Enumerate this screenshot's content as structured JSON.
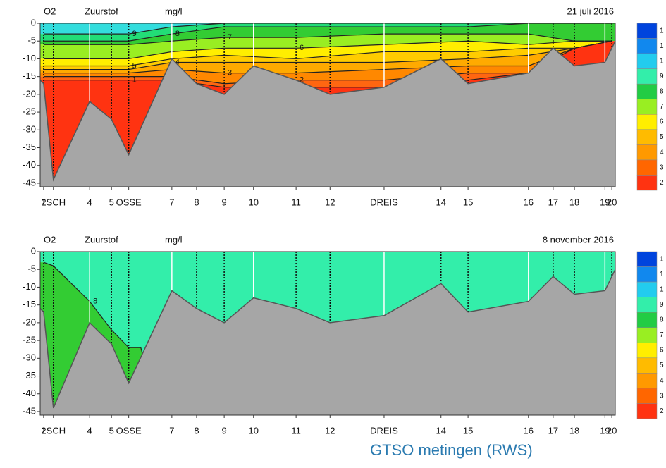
{
  "chart_data": [
    {
      "type": "contour",
      "title": "O2",
      "subtitle": "Zuurstof",
      "unit": "mg/l",
      "date": "21 juli 2016",
      "x": [
        0.6,
        8.6,
        15.4,
        22.9,
        32,
        44.5,
        59.8,
        74.4,
        84.9,
        92.9,
        99.4
      ],
      "series": [
        {
          "name": "9",
          "color": "#33dddd",
          "values": [
            -3,
            -3,
            -3,
            -1,
            0,
            0,
            0,
            0,
            0,
            0,
            0
          ]
        },
        {
          "name": "8",
          "color": "#22dd77",
          "values": [
            -5,
            -5,
            -5,
            -3,
            -1,
            -1,
            -1,
            -1,
            0,
            0,
            0
          ]
        },
        {
          "name": "7",
          "color": "#33cc33",
          "values": [
            -6,
            -6,
            -6,
            -5,
            -4,
            -4,
            -3,
            -3,
            -3,
            -5,
            -5
          ]
        },
        {
          "name": "6",
          "color": "#99ee22",
          "values": [
            -10,
            -10,
            -10,
            -8,
            -7,
            -7,
            -6,
            -5,
            -6,
            -5,
            -5
          ]
        },
        {
          "name": "5",
          "color": "#ffee00",
          "values": [
            -12,
            -12,
            -12,
            -10,
            -9,
            -10,
            -8,
            -8,
            -7,
            -7,
            -5
          ]
        },
        {
          "name": "4",
          "color": "#ffcc00",
          "values": [
            -13,
            -13,
            -13,
            -11,
            -11,
            -11,
            -11,
            -10,
            -9,
            -7,
            -5
          ]
        },
        {
          "name": "3",
          "color": "#ffaa00",
          "values": [
            -14,
            -14,
            -14,
            -13,
            -14,
            -14,
            -13,
            -12,
            -12,
            -7,
            -5
          ]
        },
        {
          "name": "2",
          "color": "#ff8800",
          "values": [
            -15,
            -15,
            -15,
            -15,
            -17,
            -16,
            -16,
            -14,
            -14,
            -7,
            -5
          ]
        },
        {
          "name": "1",
          "color": "#ff6611",
          "values": [
            -16,
            -16,
            -16,
            -16,
            -18,
            -18,
            -18,
            -16,
            -14,
            -7,
            -5
          ]
        }
      ],
      "fill_below": "#ff3311",
      "bed": {
        "color": "#a6a6a6",
        "x": [
          0,
          0.6,
          2.3,
          8.6,
          12.4,
          15.4,
          22.9,
          27.2,
          32,
          37.1,
          44.5,
          50.4,
          59.8,
          69.7,
          74.4,
          84.9,
          89.2,
          92.9,
          98.2,
          100
        ],
        "values": [
          -16,
          -17,
          -44,
          -22,
          -27,
          -37,
          -10,
          -17,
          -20,
          -12,
          -16,
          -20,
          -18,
          -10,
          -17,
          -14,
          -7,
          -12,
          -11,
          -5
        ]
      },
      "xlim": [
        0,
        100
      ],
      "ylim": [
        -46,
        0
      ],
      "yticks": [
        0,
        -5,
        -10,
        -15,
        -20,
        -25,
        -30,
        -35,
        -40,
        -45
      ],
      "xticks": [
        {
          "value": 0.6,
          "label": "1"
        },
        {
          "value": 2.3,
          "label": "2SCH"
        },
        {
          "value": 8.6,
          "label": "4"
        },
        {
          "value": 12.4,
          "label": "5"
        },
        {
          "value": 15.4,
          "label": "OSSE"
        },
        {
          "value": 22.9,
          "label": "7"
        },
        {
          "value": 27.2,
          "label": "8"
        },
        {
          "value": 32,
          "label": "9"
        },
        {
          "value": 37.1,
          "label": "10"
        },
        {
          "value": 44.5,
          "label": "11"
        },
        {
          "value": 50.4,
          "label": "12"
        },
        {
          "value": 59.8,
          "label": "DREIS"
        },
        {
          "value": 69.7,
          "label": "14"
        },
        {
          "value": 74.4,
          "label": "15"
        },
        {
          "value": 84.9,
          "label": "16"
        },
        {
          "value": 89.2,
          "label": "17"
        },
        {
          "value": 92.9,
          "label": "18"
        },
        {
          "value": 98.2,
          "label": "19"
        },
        {
          "value": 99.4,
          "label": "20"
        }
      ],
      "legend": {
        "colors": [
          "#0044dd",
          "#1188ee",
          "#22ccee",
          "#33eeaa",
          "#22cc44",
          "#99ee22",
          "#ffee00",
          "#ffbb00",
          "#ff9900",
          "#ff6600",
          "#ff3311"
        ],
        "labels": [
          "1",
          "1",
          "1",
          "9",
          "8",
          "7",
          "6",
          "5",
          "4",
          "3",
          "2"
        ]
      }
    },
    {
      "type": "contour",
      "title": "O2",
      "subtitle": "Zuurstof",
      "unit": "mg/l",
      "date": "8 november 2016",
      "x": [
        0.6,
        2.3,
        8.6,
        12.4,
        15.4,
        17.5,
        22.9,
        99.4
      ],
      "series": [
        {
          "name": "8",
          "color": "#33eeaa",
          "values": [
            -3,
            -4,
            -14,
            -22,
            -27,
            -27,
            -60,
            -60
          ]
        }
      ],
      "fill_below": "#33cc33",
      "bed": {
        "color": "#a6a6a6",
        "x": [
          0,
          0.6,
          2.3,
          8.6,
          12.4,
          15.4,
          22.9,
          27.2,
          32,
          37.1,
          44.5,
          50.4,
          59.8,
          69.7,
          74.4,
          84.9,
          89.2,
          92.9,
          98.2,
          100
        ],
        "values": [
          -16,
          -17,
          -44,
          -20,
          -26,
          -37,
          -11,
          -16,
          -20,
          -13,
          -16,
          -20,
          -18,
          -9,
          -17,
          -14,
          -7,
          -12,
          -11,
          -5
        ]
      },
      "xlim": [
        0,
        100
      ],
      "ylim": [
        -46,
        0
      ],
      "yticks": [
        0,
        -5,
        -10,
        -15,
        -20,
        -25,
        -30,
        -35,
        -40,
        -45
      ],
      "xticks": [
        {
          "value": 0.6,
          "label": "1"
        },
        {
          "value": 2.3,
          "label": "2SCH"
        },
        {
          "value": 8.6,
          "label": "4"
        },
        {
          "value": 12.4,
          "label": "5"
        },
        {
          "value": 15.4,
          "label": "OSSE"
        },
        {
          "value": 22.9,
          "label": "7"
        },
        {
          "value": 27.2,
          "label": "8"
        },
        {
          "value": 32,
          "label": "9"
        },
        {
          "value": 37.1,
          "label": "10"
        },
        {
          "value": 44.5,
          "label": "11"
        },
        {
          "value": 50.4,
          "label": "12"
        },
        {
          "value": 59.8,
          "label": "DREIS"
        },
        {
          "value": 69.7,
          "label": "14"
        },
        {
          "value": 74.4,
          "label": "15"
        },
        {
          "value": 84.9,
          "label": "16"
        },
        {
          "value": 89.2,
          "label": "17"
        },
        {
          "value": 92.9,
          "label": "18"
        },
        {
          "value": 98.2,
          "label": "19"
        },
        {
          "value": 99.4,
          "label": "20"
        }
      ],
      "legend": {
        "colors": [
          "#0044dd",
          "#1188ee",
          "#22ccee",
          "#33eeaa",
          "#22cc44",
          "#99ee22",
          "#ffee00",
          "#ffbb00",
          "#ff9900",
          "#ff6600",
          "#ff3311"
        ],
        "labels": [
          "1",
          "1",
          "1",
          "9",
          "8",
          "7",
          "6",
          "5",
          "4",
          "3",
          "2"
        ]
      }
    }
  ],
  "footer": "GTSO metingen (RWS)"
}
